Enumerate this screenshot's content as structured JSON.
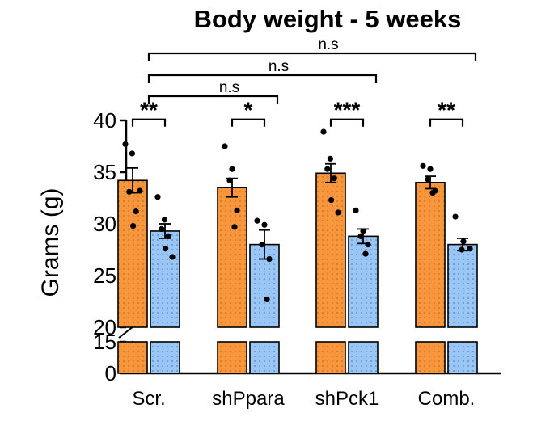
{
  "chart_data": {
    "type": "bar",
    "title": "Body weight - 5 weeks",
    "xlabel": "",
    "ylabel": "Grams (g)",
    "ylim": [
      0,
      40
    ],
    "axis_break": [
      15,
      20
    ],
    "yticks": [
      "0",
      "15",
      "20",
      "25",
      "30",
      "35",
      "40"
    ],
    "categories": [
      "Scr.",
      "shPpara",
      "shPck1",
      "Comb."
    ],
    "colors": {
      "group1": "#f7963c",
      "group2": "#99c6f4",
      "edge": "#000000"
    },
    "series": [
      {
        "name": "group 1 (orange)",
        "values": [
          34.2,
          33.5,
          34.9,
          34.0
        ],
        "sem": [
          1.2,
          0.9,
          0.9,
          0.6
        ],
        "points": [
          [
            37.7,
            36.8,
            33.1,
            31.2,
            29.8,
            33.2
          ],
          [
            37.5,
            35.3,
            34.2,
            31.3,
            29.7
          ],
          [
            38.9,
            36.3,
            35.3,
            34.4,
            32.3,
            31.1
          ],
          [
            35.6,
            35.3,
            34.3,
            33.2,
            33.0
          ]
        ]
      },
      {
        "name": "group 2 (blue)",
        "values": [
          29.3,
          28.0,
          28.8,
          28.0
        ],
        "sem": [
          0.7,
          1.4,
          0.7,
          0.6
        ],
        "points": [
          [
            32.6,
            30.4,
            29.5,
            28.8,
            27.6,
            26.8
          ],
          [
            30.3,
            29.9,
            28.0,
            26.6,
            22.7
          ],
          [
            31.3,
            29.3,
            28.8,
            28.0,
            27.1
          ],
          [
            30.7,
            28.3,
            27.5,
            27.6
          ]
        ]
      }
    ],
    "annotations": [
      {
        "text": "**",
        "type": "within",
        "category": 0
      },
      {
        "text": "*",
        "type": "within",
        "category": 1
      },
      {
        "text": "***",
        "type": "within",
        "category": 2
      },
      {
        "text": "**",
        "type": "within",
        "category": 3
      },
      {
        "text": "n.s",
        "type": "between",
        "from": 0,
        "to": 1
      },
      {
        "text": "n.s",
        "type": "between",
        "from": 0,
        "to": 2
      },
      {
        "text": "n.s",
        "type": "between",
        "from": 0,
        "to": 3
      }
    ]
  }
}
